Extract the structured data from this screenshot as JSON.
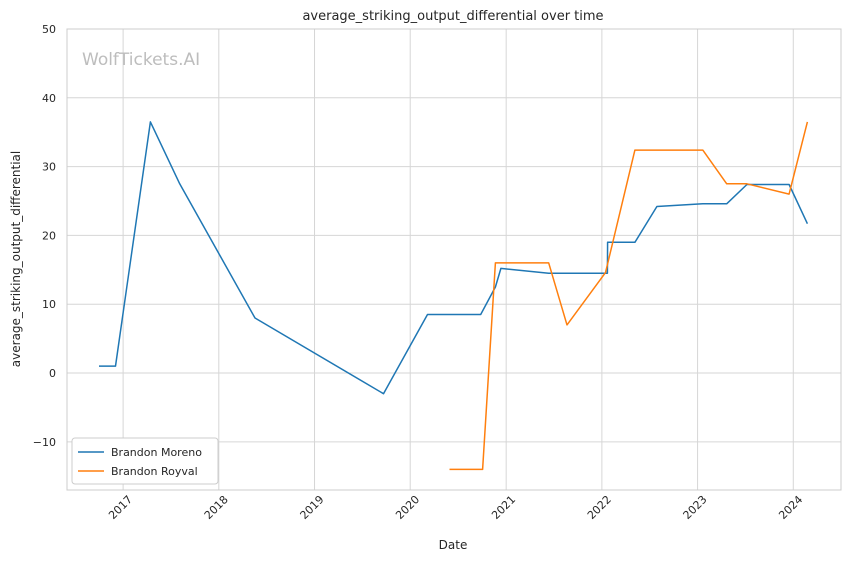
{
  "chart_data": {
    "type": "line",
    "title": "average_striking_output_differential over time",
    "xlabel": "Date",
    "ylabel": "average_striking_output_differential",
    "watermark": "WolfTickets.AI",
    "x_ticks": [
      "2017",
      "2018",
      "2019",
      "2020",
      "2021",
      "2022",
      "2023",
      "2024"
    ],
    "y_ticks": [
      "50",
      "40",
      "30",
      "20",
      "10",
      "0",
      "−10"
    ],
    "xlim": [
      "2016-06-01",
      "2024-07-01"
    ],
    "ylim": [
      -17,
      50
    ],
    "grid": true,
    "legend_position": "lower-left",
    "series": [
      {
        "name": "Brandon Moreno",
        "color": "#1f77b4",
        "points": [
          [
            "2016-10-01",
            1.0
          ],
          [
            "2016-12-03",
            1.0
          ],
          [
            "2017-04-15",
            36.5
          ],
          [
            "2017-08-05",
            27.5
          ],
          [
            "2018-05-19",
            8.0
          ],
          [
            "2019-09-21",
            -3.0
          ],
          [
            "2020-03-07",
            8.5
          ],
          [
            "2020-06-13",
            8.5
          ],
          [
            "2020-09-26",
            8.5
          ],
          [
            "2020-11-21",
            12.5
          ],
          [
            "2020-12-12",
            15.2
          ],
          [
            "2021-06-12",
            14.5
          ],
          [
            "2021-12-11",
            14.5
          ],
          [
            "2022-01-22",
            14.5
          ],
          [
            "2022-01-23",
            19.0
          ],
          [
            "2022-05-07",
            19.0
          ],
          [
            "2022-07-30",
            24.2
          ],
          [
            "2023-01-21",
            24.6
          ],
          [
            "2023-04-22",
            24.6
          ],
          [
            "2023-07-08",
            27.4
          ],
          [
            "2023-12-16",
            27.4
          ],
          [
            "2024-02-24",
            21.7
          ]
        ]
      },
      {
        "name": "Brandon Royval",
        "color": "#ff7f0e",
        "points": [
          [
            "2020-05-30",
            -14.0
          ],
          [
            "2020-10-03",
            -14.0
          ],
          [
            "2020-11-21",
            16.0
          ],
          [
            "2021-06-12",
            16.0
          ],
          [
            "2021-08-21",
            7.0
          ],
          [
            "2022-01-15",
            14.6
          ],
          [
            "2022-05-07",
            32.4
          ],
          [
            "2023-01-21",
            32.4
          ],
          [
            "2023-04-22",
            27.5
          ],
          [
            "2023-07-08",
            27.5
          ],
          [
            "2023-12-16",
            26.0
          ],
          [
            "2024-02-24",
            36.5
          ]
        ]
      }
    ]
  }
}
